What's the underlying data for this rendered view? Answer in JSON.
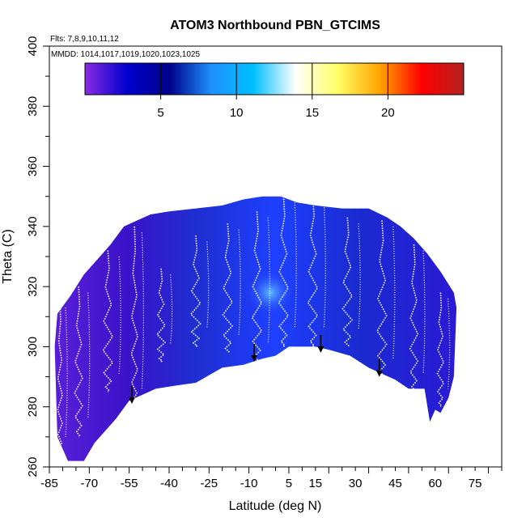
{
  "chart_data": {
    "type": "heatmap",
    "title": "ATOM3 Northbound PBN_GTCIMS",
    "flights_note": "Flts: 7,8,9,10,11,12",
    "dates_note": "MMDD: 1014,1017,1019,1020,1023,1025",
    "xlabel": "Latitude (deg N)",
    "ylabel": "Theta (C)",
    "xlim": [
      -85,
      85
    ],
    "ylim": [
      260,
      400
    ],
    "x_ticks": [
      -85,
      -70,
      -55,
      -40,
      -25,
      -10,
      5,
      15,
      30,
      45,
      60,
      75
    ],
    "y_ticks": [
      260,
      280,
      300,
      320,
      340,
      360,
      380,
      400
    ],
    "colorbar": {
      "range": [
        0,
        25
      ],
      "ticks": [
        5,
        10,
        15,
        20
      ],
      "colors": [
        "#8a2be2",
        "#0000cd",
        "#00008b",
        "#1e90ff",
        "#00bfff",
        "#ffffff",
        "#ffff66",
        "#ffa500",
        "#ff0000",
        "#b22222"
      ]
    },
    "coverage_upper": [
      [
        -82,
        311
      ],
      [
        -77,
        317
      ],
      [
        -72,
        324
      ],
      [
        -67,
        329
      ],
      [
        -62,
        334
      ],
      [
        -57,
        340
      ],
      [
        -52,
        342
      ],
      [
        -47,
        344
      ],
      [
        -40,
        345
      ],
      [
        -30,
        346
      ],
      [
        -20,
        347
      ],
      [
        -12,
        349
      ],
      [
        -5,
        350
      ],
      [
        2,
        350
      ],
      [
        8,
        348
      ],
      [
        15,
        347
      ],
      [
        25,
        346
      ],
      [
        35,
        346
      ],
      [
        42,
        343
      ],
      [
        47,
        340
      ],
      [
        52,
        336
      ],
      [
        57,
        331
      ],
      [
        62,
        325
      ],
      [
        67,
        318
      ],
      [
        68,
        313
      ]
    ],
    "coverage_lower": [
      [
        68,
        313
      ],
      [
        67,
        290
      ],
      [
        65,
        283
      ],
      [
        62,
        278
      ],
      [
        60,
        279
      ],
      [
        58,
        275
      ],
      [
        56,
        286
      ],
      [
        50,
        286
      ],
      [
        45,
        289
      ],
      [
        40,
        291
      ],
      [
        35,
        293
      ],
      [
        28,
        297
      ],
      [
        20,
        299
      ],
      [
        15,
        300
      ],
      [
        10,
        300
      ],
      [
        5,
        300
      ],
      [
        0,
        297
      ],
      [
        -5,
        296
      ],
      [
        -12,
        294
      ],
      [
        -20,
        293
      ],
      [
        -30,
        288
      ],
      [
        -38,
        287
      ],
      [
        -45,
        286
      ],
      [
        -55,
        282
      ],
      [
        -60,
        276
      ],
      [
        -68,
        268
      ],
      [
        -72,
        262
      ],
      [
        -78,
        262
      ],
      [
        -82,
        270
      ],
      [
        -83,
        300
      ]
    ],
    "arrows": [
      {
        "lat": -54,
        "theta": 281
      },
      {
        "lat": -8,
        "theta": 295
      },
      {
        "lat": 17,
        "theta": 298
      },
      {
        "lat": 39,
        "theta": 290
      }
    ],
    "profiles": [
      {
        "top": 315,
        "bottom": 264,
        "lat": -81,
        "half_width": 1.5
      },
      {
        "top": 320,
        "bottom": 270,
        "lat": -74,
        "half_width": 2.5
      },
      {
        "top": 332,
        "bottom": 285,
        "lat": -63,
        "half_width": 3
      },
      {
        "top": 340,
        "bottom": 280,
        "lat": -53,
        "half_width": 2
      },
      {
        "top": 326,
        "bottom": 295,
        "lat": -43,
        "half_width": 2.5
      },
      {
        "top": 337,
        "bottom": 300,
        "lat": -30,
        "half_width": 3
      },
      {
        "top": 341,
        "bottom": 298,
        "lat": -18,
        "half_width": 3
      },
      {
        "top": 345,
        "bottom": 295,
        "lat": -7,
        "half_width": 3
      },
      {
        "top": 350,
        "bottom": 300,
        "lat": 3,
        "half_width": 3
      },
      {
        "top": 350,
        "bottom": 300,
        "lat": 14,
        "half_width": 3
      },
      {
        "top": 343,
        "bottom": 300,
        "lat": 27,
        "half_width": 3
      },
      {
        "top": 342,
        "bottom": 290,
        "lat": 40,
        "half_width": 3
      },
      {
        "top": 334,
        "bottom": 285,
        "lat": 52,
        "half_width": 2.5
      },
      {
        "top": 318,
        "bottom": 280,
        "lat": 62,
        "half_width": 2
      }
    ]
  }
}
